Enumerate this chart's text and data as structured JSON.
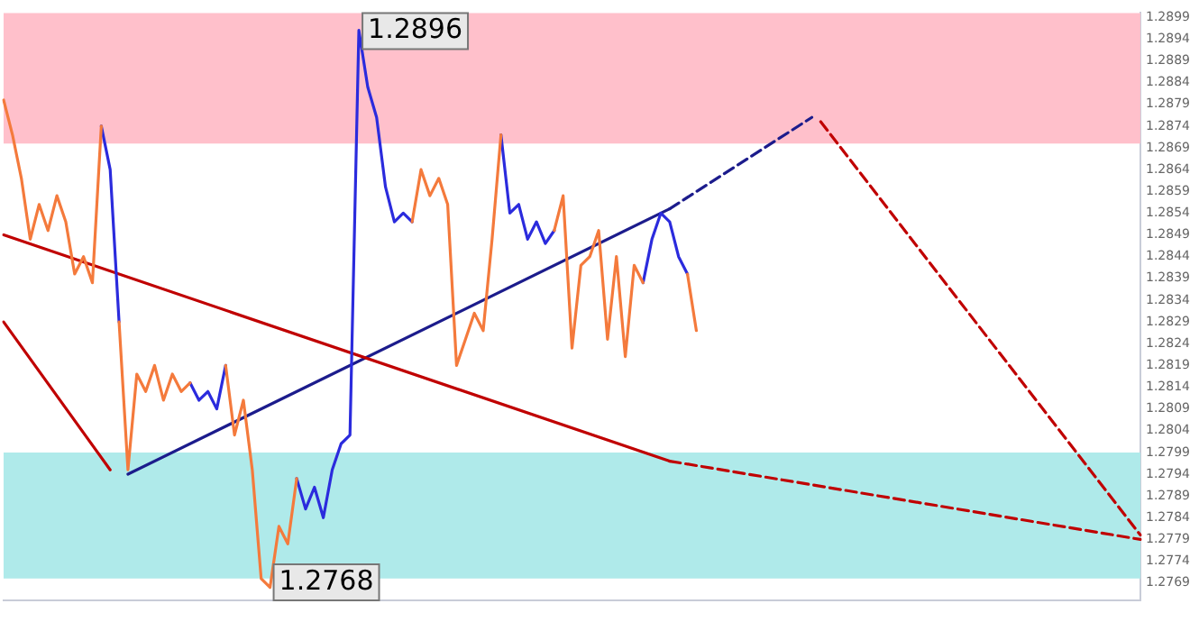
{
  "chart_data": {
    "type": "line",
    "tick_labels": "y",
    "grid": false,
    "legend": false,
    "marker": "none",
    "categories": [
      null,
      null,
      null,
      null,
      null,
      null,
      null,
      null,
      null,
      null,
      null,
      null,
      null,
      null,
      null,
      null,
      null,
      null,
      null,
      null,
      null,
      null,
      null,
      null,
      null,
      null,
      null,
      null,
      null,
      null,
      null,
      null,
      null,
      null,
      null,
      null,
      null,
      null,
      null,
      null,
      null,
      null,
      null,
      null,
      null,
      null,
      null,
      null,
      null,
      null,
      null,
      null,
      null,
      null,
      null,
      null,
      null,
      null,
      null,
      null,
      null,
      null,
      null,
      null,
      null,
      null,
      null,
      null,
      null,
      null,
      null,
      null,
      null,
      null,
      null,
      null,
      null,
      null,
      null,
      null,
      null,
      null,
      null,
      null,
      null,
      null,
      null,
      null,
      null,
      null,
      null,
      null,
      null,
      null,
      null,
      null,
      null,
      null,
      null,
      null,
      null,
      null,
      null,
      null,
      null,
      null,
      null,
      null,
      null,
      null,
      null,
      null,
      null,
      null,
      null,
      null,
      null,
      null,
      null,
      null,
      null,
      null,
      null,
      null,
      null,
      null,
      null,
      null,
      null
    ],
    "ylim": [
      1.2765,
      1.29
    ],
    "yticks": [
      1.2769,
      1.2774,
      1.2779,
      1.2784,
      1.2789,
      1.2794,
      1.2799,
      1.2804,
      1.2809,
      1.2814,
      1.2819,
      1.2824,
      1.2829,
      1.2834,
      1.2839,
      1.2844,
      1.2849,
      1.2854,
      1.2859,
      1.2864,
      1.2869,
      1.2874,
      1.2879,
      1.2884,
      1.2889,
      1.2894,
      1.2899
    ],
    "bands": [
      {
        "axis": "y",
        "from": 1.287,
        "to": 1.29,
        "color": "#ffc0cb"
      },
      {
        "axis": "y",
        "from": 1.277,
        "to": 1.2799,
        "color": "#afeaea"
      }
    ],
    "annotations": [
      "1.2896",
      "1.2768"
    ],
    "series": [
      {
        "color": "#f47a3c",
        "values": [
          1.288,
          1.2872,
          1.2862,
          1.2848,
          1.2856,
          1.285,
          1.2858,
          1.2852,
          1.284,
          1.2844,
          1.2838,
          1.2874,
          null,
          1.2829,
          1.2795,
          1.2817,
          1.2813,
          1.2819,
          1.2811,
          1.2817,
          1.2813,
          1.2815,
          null,
          null,
          null,
          1.2819,
          1.2803,
          1.2811,
          1.2795,
          1.277,
          1.2768,
          1.2782,
          1.2778,
          1.2793,
          null,
          null,
          null,
          null,
          null,
          null,
          null,
          null,
          null,
          null,
          null,
          null,
          1.2852,
          1.2864,
          1.2858,
          1.2862,
          1.2856,
          1.2819,
          1.2825,
          1.2831,
          1.2827,
          1.2848,
          1.2872,
          null,
          null,
          null,
          null,
          null,
          1.285,
          1.2858,
          1.2823,
          1.2842,
          1.2844,
          1.285,
          1.2825,
          1.2844,
          1.2821,
          1.2842,
          1.2838,
          null,
          null,
          null,
          null,
          1.284,
          1.2827,
          null,
          null,
          null,
          null,
          null,
          null,
          null,
          null,
          null,
          null,
          null,
          null,
          null,
          null,
          null,
          null,
          null,
          null,
          null,
          null,
          null,
          null,
          null,
          null,
          null,
          null,
          null,
          null,
          null,
          null,
          null,
          null,
          null,
          null,
          null,
          null,
          null,
          null,
          null,
          null,
          null,
          null,
          null,
          null,
          null,
          null,
          null,
          null,
          null,
          null
        ]
      },
      {
        "color": "#2b2bdd",
        "values": [
          null,
          null,
          null,
          null,
          null,
          null,
          null,
          null,
          null,
          null,
          null,
          1.2874,
          1.2864,
          1.2829,
          null,
          null,
          null,
          null,
          null,
          null,
          null,
          1.2815,
          1.2811,
          1.2813,
          1.2809,
          1.2819,
          null,
          null,
          null,
          null,
          null,
          null,
          null,
          1.2793,
          1.2786,
          1.2791,
          1.2784,
          1.2795,
          1.2801,
          1.2803,
          1.2896,
          1.2883,
          1.2876,
          1.286,
          1.2852,
          1.2854,
          1.2852,
          null,
          null,
          null,
          null,
          null,
          null,
          null,
          null,
          null,
          1.2872,
          1.2854,
          1.2856,
          1.2848,
          1.2852,
          1.2847,
          1.285,
          null,
          null,
          null,
          null,
          null,
          null,
          null,
          null,
          null,
          1.2838,
          1.2848,
          1.2854,
          1.2852,
          1.2844,
          1.284,
          null,
          null,
          null,
          null,
          null,
          null,
          null,
          null,
          null,
          null,
          null,
          null,
          null,
          null,
          null,
          null,
          null,
          null,
          null,
          null,
          null,
          null,
          null,
          null,
          null,
          null,
          null,
          null,
          null,
          null,
          null,
          null,
          null,
          null,
          null,
          null,
          null,
          null,
          null,
          null,
          null,
          null,
          null,
          null,
          null,
          null,
          null,
          null,
          null,
          null,
          null
        ]
      },
      {
        "color": "#c00000",
        "values": [
          1.2849,
          null,
          null,
          null,
          null,
          null,
          null,
          null,
          null,
          null,
          null,
          null,
          null,
          null,
          null,
          null,
          null,
          null,
          null,
          null,
          null,
          null,
          null,
          null,
          null,
          null,
          null,
          null,
          null,
          null,
          null,
          null,
          null,
          null,
          null,
          null,
          null,
          null,
          null,
          null,
          null,
          null,
          null,
          null,
          null,
          null,
          null,
          null,
          null,
          null,
          null,
          null,
          null,
          null,
          null,
          null,
          null,
          null,
          null,
          null,
          null,
          null,
          null,
          null,
          null,
          null,
          null,
          null,
          null,
          null,
          null,
          null,
          null,
          null,
          null,
          1.2797,
          null,
          null,
          null,
          null,
          null,
          null,
          null,
          null,
          null,
          null,
          null,
          null,
          null,
          null,
          null,
          null,
          null,
          null,
          null,
          null,
          null,
          null,
          null,
          null,
          null,
          null,
          null,
          null,
          null,
          null,
          null,
          null,
          null,
          null,
          null,
          null,
          null,
          null,
          null,
          null,
          null,
          null,
          null,
          null,
          null,
          null,
          null,
          null,
          null,
          null,
          null,
          null,
          null
        ]
      },
      {
        "color": "#c00000",
        "line_style": "dashed",
        "values": [
          null,
          null,
          null,
          null,
          null,
          null,
          null,
          null,
          null,
          null,
          null,
          null,
          null,
          null,
          null,
          null,
          null,
          null,
          null,
          null,
          null,
          null,
          null,
          null,
          null,
          null,
          null,
          null,
          null,
          null,
          null,
          null,
          null,
          null,
          null,
          null,
          null,
          null,
          null,
          null,
          null,
          null,
          null,
          null,
          null,
          null,
          null,
          null,
          null,
          null,
          null,
          null,
          null,
          null,
          null,
          null,
          null,
          null,
          null,
          null,
          null,
          null,
          null,
          null,
          null,
          null,
          null,
          null,
          null,
          null,
          null,
          null,
          null,
          null,
          null,
          1.2797,
          null,
          null,
          null,
          null,
          null,
          null,
          null,
          null,
          null,
          null,
          null,
          null,
          null,
          null,
          null,
          null,
          null,
          null,
          null,
          null,
          null,
          null,
          null,
          null,
          null,
          null,
          null,
          null,
          null,
          null,
          null,
          null,
          null,
          null,
          null,
          null,
          null,
          null,
          null,
          null,
          null,
          null,
          null,
          null,
          null,
          null,
          null,
          null,
          null,
          null,
          null,
          null,
          1.2779
        ]
      },
      {
        "color": "#1c1c8c",
        "values": [
          null,
          null,
          null,
          null,
          null,
          null,
          null,
          null,
          null,
          null,
          null,
          null,
          null,
          null,
          1.2794,
          null,
          null,
          null,
          null,
          null,
          null,
          null,
          null,
          null,
          null,
          null,
          null,
          null,
          null,
          null,
          null,
          null,
          null,
          null,
          null,
          null,
          null,
          null,
          null,
          null,
          null,
          null,
          null,
          null,
          null,
          null,
          null,
          null,
          null,
          null,
          null,
          null,
          null,
          null,
          null,
          null,
          null,
          null,
          null,
          null,
          null,
          null,
          null,
          null,
          null,
          null,
          null,
          null,
          null,
          null,
          null,
          null,
          null,
          null,
          null,
          1.2855,
          null,
          null,
          null,
          null,
          null,
          null,
          null,
          null,
          null,
          null,
          null,
          null,
          null,
          null,
          null,
          null,
          null,
          null,
          null,
          null,
          null,
          null,
          null,
          null,
          null,
          null,
          null,
          null,
          null,
          null,
          null,
          null,
          null,
          null,
          null,
          null,
          null,
          null,
          null,
          null,
          null,
          null,
          null,
          null,
          null,
          null,
          null,
          null,
          null,
          null,
          null,
          null,
          null
        ]
      },
      {
        "color": "#1c1c8c",
        "line_style": "dashed",
        "values": [
          null,
          null,
          null,
          null,
          null,
          null,
          null,
          null,
          null,
          null,
          null,
          null,
          null,
          null,
          null,
          null,
          null,
          null,
          null,
          null,
          null,
          null,
          null,
          null,
          null,
          null,
          null,
          null,
          null,
          null,
          null,
          null,
          null,
          null,
          null,
          null,
          null,
          null,
          null,
          null,
          null,
          null,
          null,
          null,
          null,
          null,
          null,
          null,
          null,
          null,
          null,
          null,
          null,
          null,
          null,
          null,
          null,
          null,
          null,
          null,
          null,
          null,
          null,
          null,
          null,
          null,
          null,
          null,
          null,
          null,
          null,
          null,
          null,
          null,
          null,
          1.2855,
          null,
          null,
          null,
          null,
          null,
          null,
          null,
          null,
          null,
          null,
          null,
          null,
          null,
          null,
          null,
          1.2876,
          null,
          null,
          null,
          null,
          null,
          null,
          null,
          null,
          null,
          null,
          null,
          null,
          null,
          null,
          null,
          null,
          null,
          null,
          null,
          null,
          null,
          null,
          null,
          null,
          null,
          null,
          null,
          null,
          null,
          null,
          null,
          null,
          null,
          null,
          null,
          null,
          null
        ]
      },
      {
        "color": "#c00000",
        "line_style": "dashed",
        "values": [
          null,
          null,
          null,
          null,
          null,
          null,
          null,
          null,
          null,
          null,
          null,
          null,
          null,
          null,
          null,
          null,
          null,
          null,
          null,
          null,
          null,
          null,
          null,
          null,
          null,
          null,
          null,
          null,
          null,
          null,
          null,
          null,
          null,
          null,
          null,
          null,
          null,
          null,
          null,
          null,
          null,
          null,
          null,
          null,
          null,
          null,
          null,
          null,
          null,
          null,
          null,
          null,
          null,
          null,
          null,
          null,
          null,
          null,
          null,
          null,
          null,
          null,
          null,
          null,
          null,
          null,
          null,
          null,
          null,
          null,
          null,
          null,
          null,
          null,
          null,
          null,
          null,
          null,
          null,
          null,
          null,
          null,
          null,
          null,
          null,
          null,
          null,
          null,
          null,
          null,
          null,
          null,
          1.2875,
          null,
          null,
          null,
          null,
          null,
          null,
          null,
          null,
          null,
          null,
          null,
          null,
          null,
          null,
          null,
          null,
          null,
          null,
          null,
          null,
          null,
          null,
          null,
          null,
          null,
          null,
          null,
          null,
          null,
          null,
          null,
          null,
          null,
          null,
          null,
          1.278
        ]
      },
      {
        "color": "#c00000",
        "values": [
          1.2829,
          null,
          null,
          null,
          null,
          null,
          null,
          null,
          null,
          null,
          null,
          null,
          1.2795,
          null,
          null,
          null,
          null,
          null,
          null,
          null,
          null,
          null,
          null,
          null,
          null,
          null,
          null,
          null,
          null,
          null,
          null,
          null,
          null,
          null,
          null,
          null,
          null,
          null,
          null,
          null,
          null,
          null,
          null,
          null,
          null,
          null,
          null,
          null,
          null,
          null,
          null,
          null,
          null,
          null,
          null,
          null,
          null,
          null,
          null,
          null,
          null,
          null,
          null,
          null,
          null,
          null,
          null,
          null,
          null,
          null,
          null,
          null,
          null,
          null,
          null,
          null,
          null,
          null,
          null,
          null,
          null,
          null,
          null,
          null,
          null,
          null,
          null,
          null,
          null,
          null,
          null,
          null,
          null,
          null,
          null,
          null,
          null,
          null,
          null,
          null,
          null,
          null,
          null,
          null,
          null,
          null,
          null,
          null,
          null,
          null,
          null,
          null,
          null,
          null,
          null,
          null,
          null,
          null,
          null,
          null,
          null,
          null,
          null,
          null,
          null,
          null,
          null,
          null,
          null
        ]
      }
    ]
  }
}
